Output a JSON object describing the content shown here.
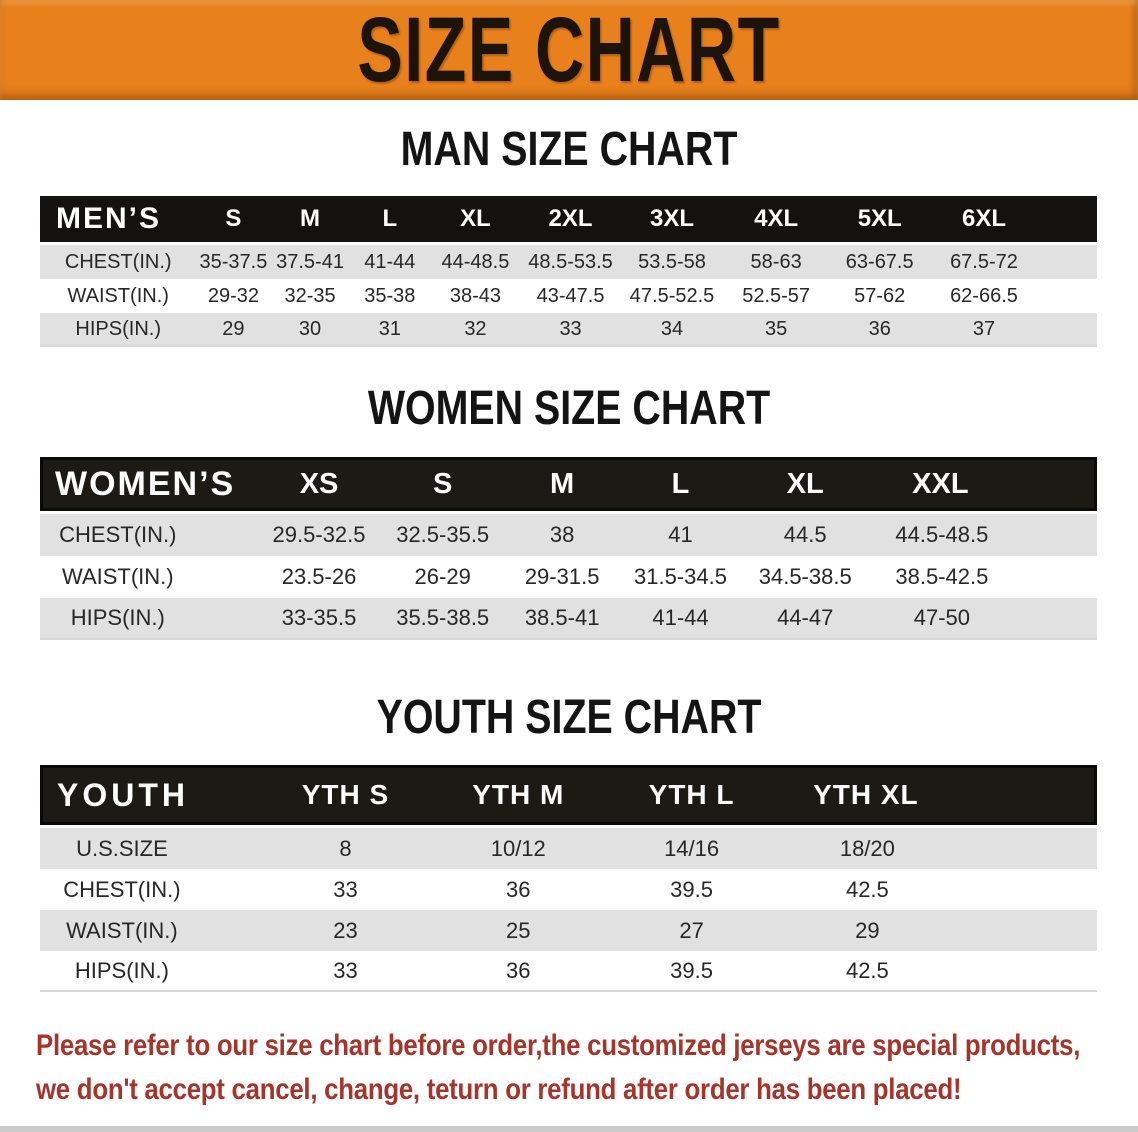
{
  "banner": {
    "title": "SIZE CHART"
  },
  "theme": {
    "banner_bg": "#E8811C",
    "banner_text": "#1C130A",
    "header_bg": "#18150F",
    "header_text": "#FFFFFF",
    "row_alt_bg": "#E1E1E1",
    "row_bg": "#FFFFFF",
    "heading_text": "#141414",
    "footer_text": "#A5342B"
  },
  "sections": [
    {
      "id": "men",
      "heading": "MAN SIZE CHART",
      "group_label": "MEN’S",
      "columns": [
        "S",
        "M",
        "L",
        "XL",
        "2XL",
        "3XL",
        "4XL",
        "5XL",
        "6XL"
      ],
      "rows": [
        {
          "label": "CHEST(IN.)",
          "values": [
            "35-37.5",
            "37.5-41",
            "41-44",
            "44-48.5",
            "48.5-53.5",
            "53.5-58",
            "58-63",
            "63-67.5",
            "67.5-72"
          ]
        },
        {
          "label": "WAIST(IN.)",
          "values": [
            "29-32",
            "32-35",
            "35-38",
            "38-43",
            "43-47.5",
            "47.5-52.5",
            "52.5-57",
            "57-62",
            "62-66.5"
          ]
        },
        {
          "label": "HIPS(IN.)",
          "values": [
            "29",
            "30",
            "31",
            "32",
            "33",
            "34",
            "35",
            "36",
            "37"
          ]
        }
      ]
    },
    {
      "id": "women",
      "heading": "WOMEN SIZE CHART",
      "group_label": "WOMEN’S",
      "columns": [
        "XS",
        "S",
        "M",
        "L",
        "XL",
        "XXL"
      ],
      "rows": [
        {
          "label": "CHEST(IN.)",
          "values": [
            "29.5-32.5",
            "32.5-35.5",
            "38",
            "41",
            "44.5",
            "44.5-48.5"
          ]
        },
        {
          "label": "WAIST(IN.)",
          "values": [
            "23.5-26",
            "26-29",
            "29-31.5",
            "31.5-34.5",
            "34.5-38.5",
            "38.5-42.5"
          ]
        },
        {
          "label": "HIPS(IN.)",
          "values": [
            "33-35.5",
            "35.5-38.5",
            "38.5-41",
            "41-44",
            "44-47",
            "47-50"
          ]
        }
      ]
    },
    {
      "id": "youth",
      "heading": "YOUTH SIZE CHART",
      "group_label": "YOUTH",
      "columns": [
        "YTH S",
        "YTH M",
        "YTH L",
        "YTH XL"
      ],
      "rows": [
        {
          "label": "U.S.SIZE",
          "values": [
            "8",
            "10/12",
            "14/16",
            "18/20"
          ]
        },
        {
          "label": "CHEST(IN.)",
          "values": [
            "33",
            "36",
            "39.5",
            "42.5"
          ]
        },
        {
          "label": "WAIST(IN.)",
          "values": [
            "23",
            "25",
            "27",
            "29"
          ]
        },
        {
          "label": "HIPS(IN.)",
          "values": [
            "33",
            "36",
            "39.5",
            "42.5"
          ]
        }
      ]
    }
  ],
  "footer": {
    "lines": [
      "Please refer to our size chart before order,the customized jerseys are special products,",
      "we don't accept cancel, change, teturn or refund after order has been placed!"
    ]
  }
}
